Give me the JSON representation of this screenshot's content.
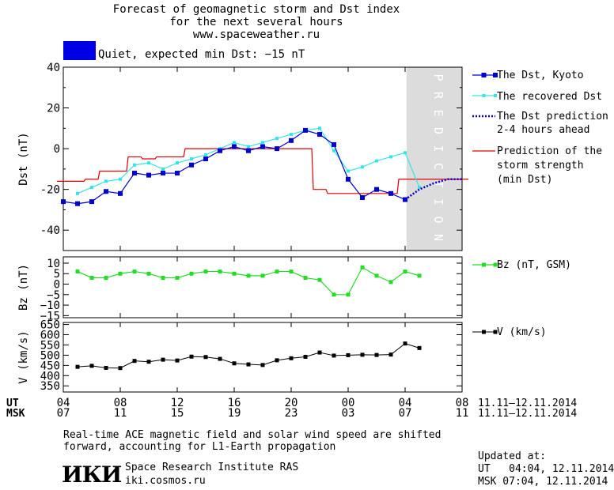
{
  "header": {
    "title_line1": "Forecast of geomagnetic storm and Dst index",
    "title_line2": "for the next several hours",
    "title_line3": "www.spaceweather.ru",
    "status_text": "Quiet, expected min Dst: −15 nT",
    "status_color": "#0000e6"
  },
  "colors": {
    "dst": "#0000d0",
    "recovered": "#33e6e6",
    "prediction": "#e00000",
    "bz": "#22dd22",
    "v": "#000000",
    "prediction_band": "#dcdcdc"
  },
  "prediction_band_label": "PREDICTION",
  "chart_data": [
    {
      "type": "line",
      "ylabel": "Dst (nT)",
      "ylim": [
        -50,
        40
      ],
      "yticks": [
        40,
        20,
        0,
        -20,
        -40
      ],
      "series": [
        {
          "name": "The Dst, Kyoto",
          "x": [
            4,
            5,
            6,
            7,
            8,
            9,
            10,
            11,
            12,
            13,
            14,
            15,
            16,
            17,
            18,
            19,
            20,
            21,
            22,
            23,
            24,
            25,
            26,
            27,
            28
          ],
          "y": [
            -26,
            -27,
            -26,
            -21,
            -22,
            -12,
            -13,
            -12,
            -12,
            -8,
            -5,
            -1,
            1,
            -1,
            1,
            0,
            4,
            9,
            7,
            2,
            -15,
            -24,
            -20,
            -22,
            -25
          ]
        },
        {
          "name": "The recovered Dst",
          "x": [
            5,
            6,
            7,
            8,
            9,
            10,
            11,
            12,
            13,
            14,
            15,
            16,
            17,
            18,
            19,
            20,
            21,
            22,
            23,
            24,
            25,
            26,
            27,
            28,
            29
          ],
          "y": [
            -22,
            -19,
            -16,
            -15,
            -8,
            -7,
            -10,
            -7,
            -5,
            -3,
            0,
            3,
            1,
            3,
            5,
            7,
            9,
            10,
            -1,
            -11,
            -9,
            -6,
            -4,
            -2,
            -19
          ]
        },
        {
          "name": "The Dst prediction 2-4 hours ahead",
          "x": [
            28,
            29,
            30,
            31,
            32
          ],
          "y": [
            -25,
            -20,
            -17,
            -15,
            -15
          ]
        },
        {
          "name": "Prediction of the storm strength (min Dst)",
          "x": [
            4,
            5,
            6,
            7,
            8,
            9,
            10,
            11,
            12,
            13,
            14,
            15,
            16,
            17,
            18,
            19,
            20,
            21,
            22,
            23,
            24,
            25,
            26,
            27,
            28,
            29,
            30,
            31,
            32
          ],
          "y": [
            -16,
            -16,
            -15,
            -11,
            -11,
            -4,
            -5,
            -4,
            -4,
            0,
            0,
            0,
            0,
            0,
            0,
            0,
            0,
            0,
            -20,
            -22,
            -22,
            -22,
            -22,
            -22,
            -15,
            -15,
            -15,
            -15,
            -15
          ]
        }
      ]
    },
    {
      "type": "line",
      "ylabel": "Bz (nT)",
      "ylim": [
        -16,
        13
      ],
      "yticks": [
        10,
        5,
        0,
        -5,
        -10,
        -15
      ],
      "ytick_labels": [
        "10",
        "5",
        "0",
        "−5",
        "−10",
        "−15"
      ],
      "series": [
        {
          "name": "Bz (nT, GSM)",
          "x": [
            5,
            6,
            7,
            8,
            9,
            10,
            11,
            12,
            13,
            14,
            15,
            16,
            17,
            18,
            19,
            20,
            21,
            22,
            23,
            24,
            25,
            26,
            27,
            28,
            29
          ],
          "y": [
            6,
            3,
            3,
            5,
            6,
            5,
            3,
            3,
            5,
            6,
            6,
            5,
            4,
            4,
            6,
            6,
            3,
            2,
            -5,
            -5,
            8,
            4,
            1,
            6,
            4
          ]
        }
      ]
    },
    {
      "type": "line",
      "ylabel": "V (km/s)",
      "ylim": [
        320,
        660
      ],
      "yticks": [
        650,
        600,
        550,
        500,
        450,
        400,
        350
      ],
      "series": [
        {
          "name": "V (km/s)",
          "x": [
            5,
            6,
            7,
            8,
            9,
            10,
            11,
            12,
            13,
            14,
            15,
            16,
            17,
            18,
            19,
            20,
            21,
            22,
            23,
            24,
            25,
            26,
            27,
            28,
            29
          ],
          "y": [
            443,
            448,
            438,
            437,
            472,
            468,
            478,
            474,
            493,
            491,
            482,
            460,
            455,
            452,
            475,
            485,
            492,
            513,
            498,
            500,
            502,
            501,
            503,
            557,
            535
          ]
        }
      ]
    }
  ],
  "x_axis": {
    "range_hours": [
      4,
      32
    ],
    "ut_label": "UT",
    "ut_ticks": [
      "04",
      "08",
      "12",
      "16",
      "20",
      "00",
      "04",
      "08"
    ],
    "msk_label": "MSK",
    "msk_ticks": [
      "07",
      "11",
      "15",
      "19",
      "23",
      "03",
      "07",
      "11"
    ],
    "ut_date_range": "11.11–12.11.2014",
    "msk_date_range": "11.11–12.11.2014"
  },
  "footer": {
    "note_line1": "Real-time ACE magnetic field and solar wind speed are shifted",
    "note_line2": "forward, accounting for L1-Earth propagation",
    "logo_text": "ИКИ",
    "institute": "Space Research Institute RAS",
    "site": "iki.cosmos.ru",
    "updated_label": "Updated at:",
    "updated_ut": "UT   04:04, 12.11.2014",
    "updated_msk": "MSK 07:04, 12.11.2014"
  },
  "legend": {
    "dst": "The Dst, Kyoto",
    "recovered": "The recovered Dst",
    "prediction_l1": "The Dst prediction",
    "prediction_l2": "2-4 hours ahead",
    "strength_l1": "Prediction of the",
    "strength_l2": "storm strength",
    "strength_l3": "(min Dst)",
    "bz": "Bz (nT, GSM)",
    "v": "V (km/s)"
  }
}
